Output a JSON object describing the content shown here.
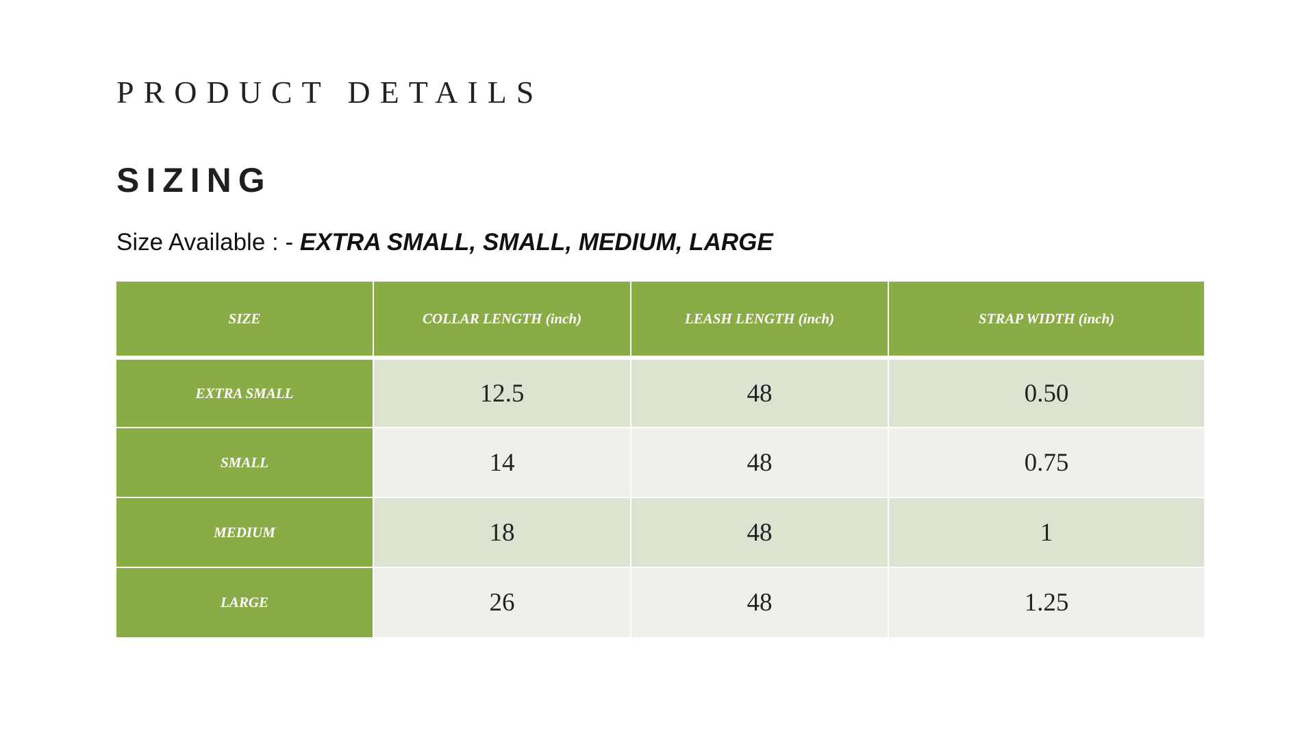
{
  "slide": {
    "heading": "PRODUCT DETAILS",
    "subheading": "SIZING",
    "sizes_label": "Size Available : - ",
    "sizes_value": "EXTRA SMALL, SMALL, MEDIUM, LARGE"
  },
  "table": {
    "headers": [
      "SIZE",
      "COLLAR LENGTH (inch)",
      "LEASH LENGTH (inch)",
      "STRAP WIDTH (inch)"
    ],
    "rows": [
      {
        "size": "EXTRA SMALL",
        "collar": "12.5",
        "leash": "48",
        "strap": "0.50"
      },
      {
        "size": "SMALL",
        "collar": "14",
        "leash": "48",
        "strap": "0.75"
      },
      {
        "size": "MEDIUM",
        "collar": "18",
        "leash": "48",
        "strap": "1"
      },
      {
        "size": "LARGE",
        "collar": "26",
        "leash": "48",
        "strap": "1.25"
      }
    ]
  },
  "colors": {
    "header_green": "#8aac47",
    "row_dark": "#dbe4d1",
    "row_light": "#eef1ea"
  }
}
